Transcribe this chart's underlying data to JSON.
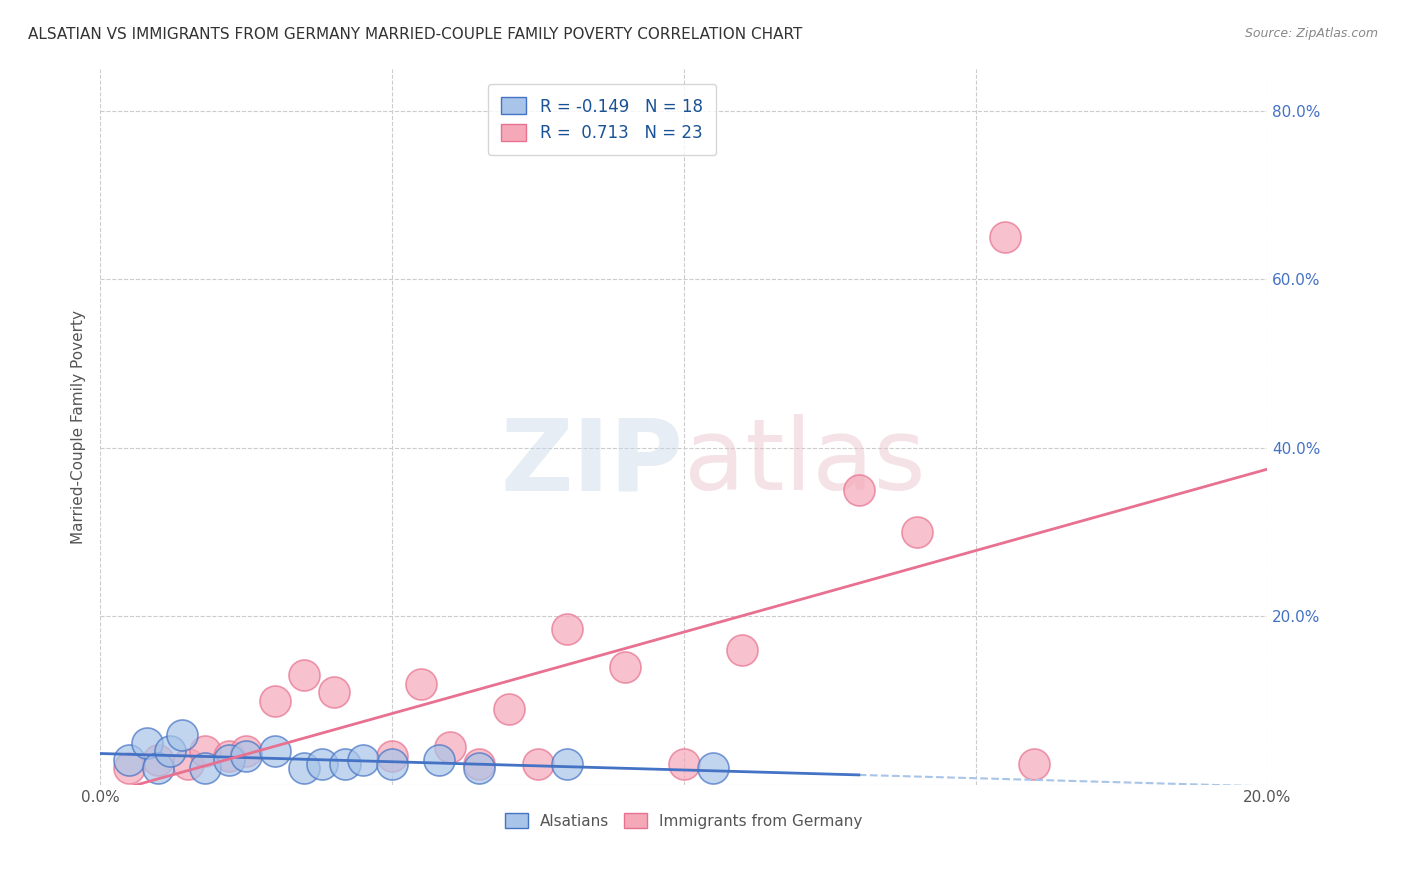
{
  "title": "ALSATIAN VS IMMIGRANTS FROM GERMANY MARRIED-COUPLE FAMILY POVERTY CORRELATION CHART",
  "source": "Source: ZipAtlas.com",
  "ylabel": "Married-Couple Family Poverty",
  "alsatians_color": "#a8c4e8",
  "immigrants_color": "#f4a8b8",
  "alsatians_line_color": "#4472c4",
  "immigrants_line_color": "#e87090",
  "dashed_line_color": "#a8c4e8",
  "background_color": "#ffffff",
  "grid_color": "#cccccc",
  "title_color": "#333333",
  "right_axis_color": "#4472c4",
  "xlim": [
    0.0,
    0.2
  ],
  "ylim": [
    0.0,
    0.85
  ],
  "yticks": [
    0.0,
    0.2,
    0.4,
    0.6,
    0.8
  ],
  "ytick_labels": [
    "",
    "20.0%",
    "40.0%",
    "60.0%",
    "80.0%"
  ],
  "xticks": [
    0.0,
    0.05,
    0.1,
    0.15,
    0.2
  ],
  "xtick_labels": [
    "0.0%",
    "",
    "",
    "",
    "20.0%"
  ],
  "legend_r1": "R = -0.149",
  "legend_n1": "N = 18",
  "legend_r2": "R =  0.713",
  "legend_n2": "N = 23",
  "alsatians_x": [
    0.005,
    0.008,
    0.01,
    0.012,
    0.014,
    0.018,
    0.022,
    0.025,
    0.03,
    0.035,
    0.038,
    0.042,
    0.045,
    0.05,
    0.058,
    0.065,
    0.08,
    0.105
  ],
  "alsatians_y": [
    0.03,
    0.05,
    0.02,
    0.04,
    0.06,
    0.02,
    0.03,
    0.035,
    0.04,
    0.02,
    0.025,
    0.025,
    0.03,
    0.025,
    0.03,
    0.02,
    0.025,
    0.02
  ],
  "immigrants_x": [
    0.005,
    0.01,
    0.015,
    0.018,
    0.022,
    0.025,
    0.03,
    0.035,
    0.04,
    0.05,
    0.055,
    0.06,
    0.065,
    0.07,
    0.075,
    0.08,
    0.09,
    0.1,
    0.11,
    0.13,
    0.14,
    0.155,
    0.16
  ],
  "immigrants_y": [
    0.02,
    0.03,
    0.025,
    0.04,
    0.035,
    0.04,
    0.1,
    0.13,
    0.11,
    0.035,
    0.12,
    0.045,
    0.025,
    0.09,
    0.025,
    0.185,
    0.14,
    0.025,
    0.16,
    0.35,
    0.3,
    0.65,
    0.025
  ]
}
